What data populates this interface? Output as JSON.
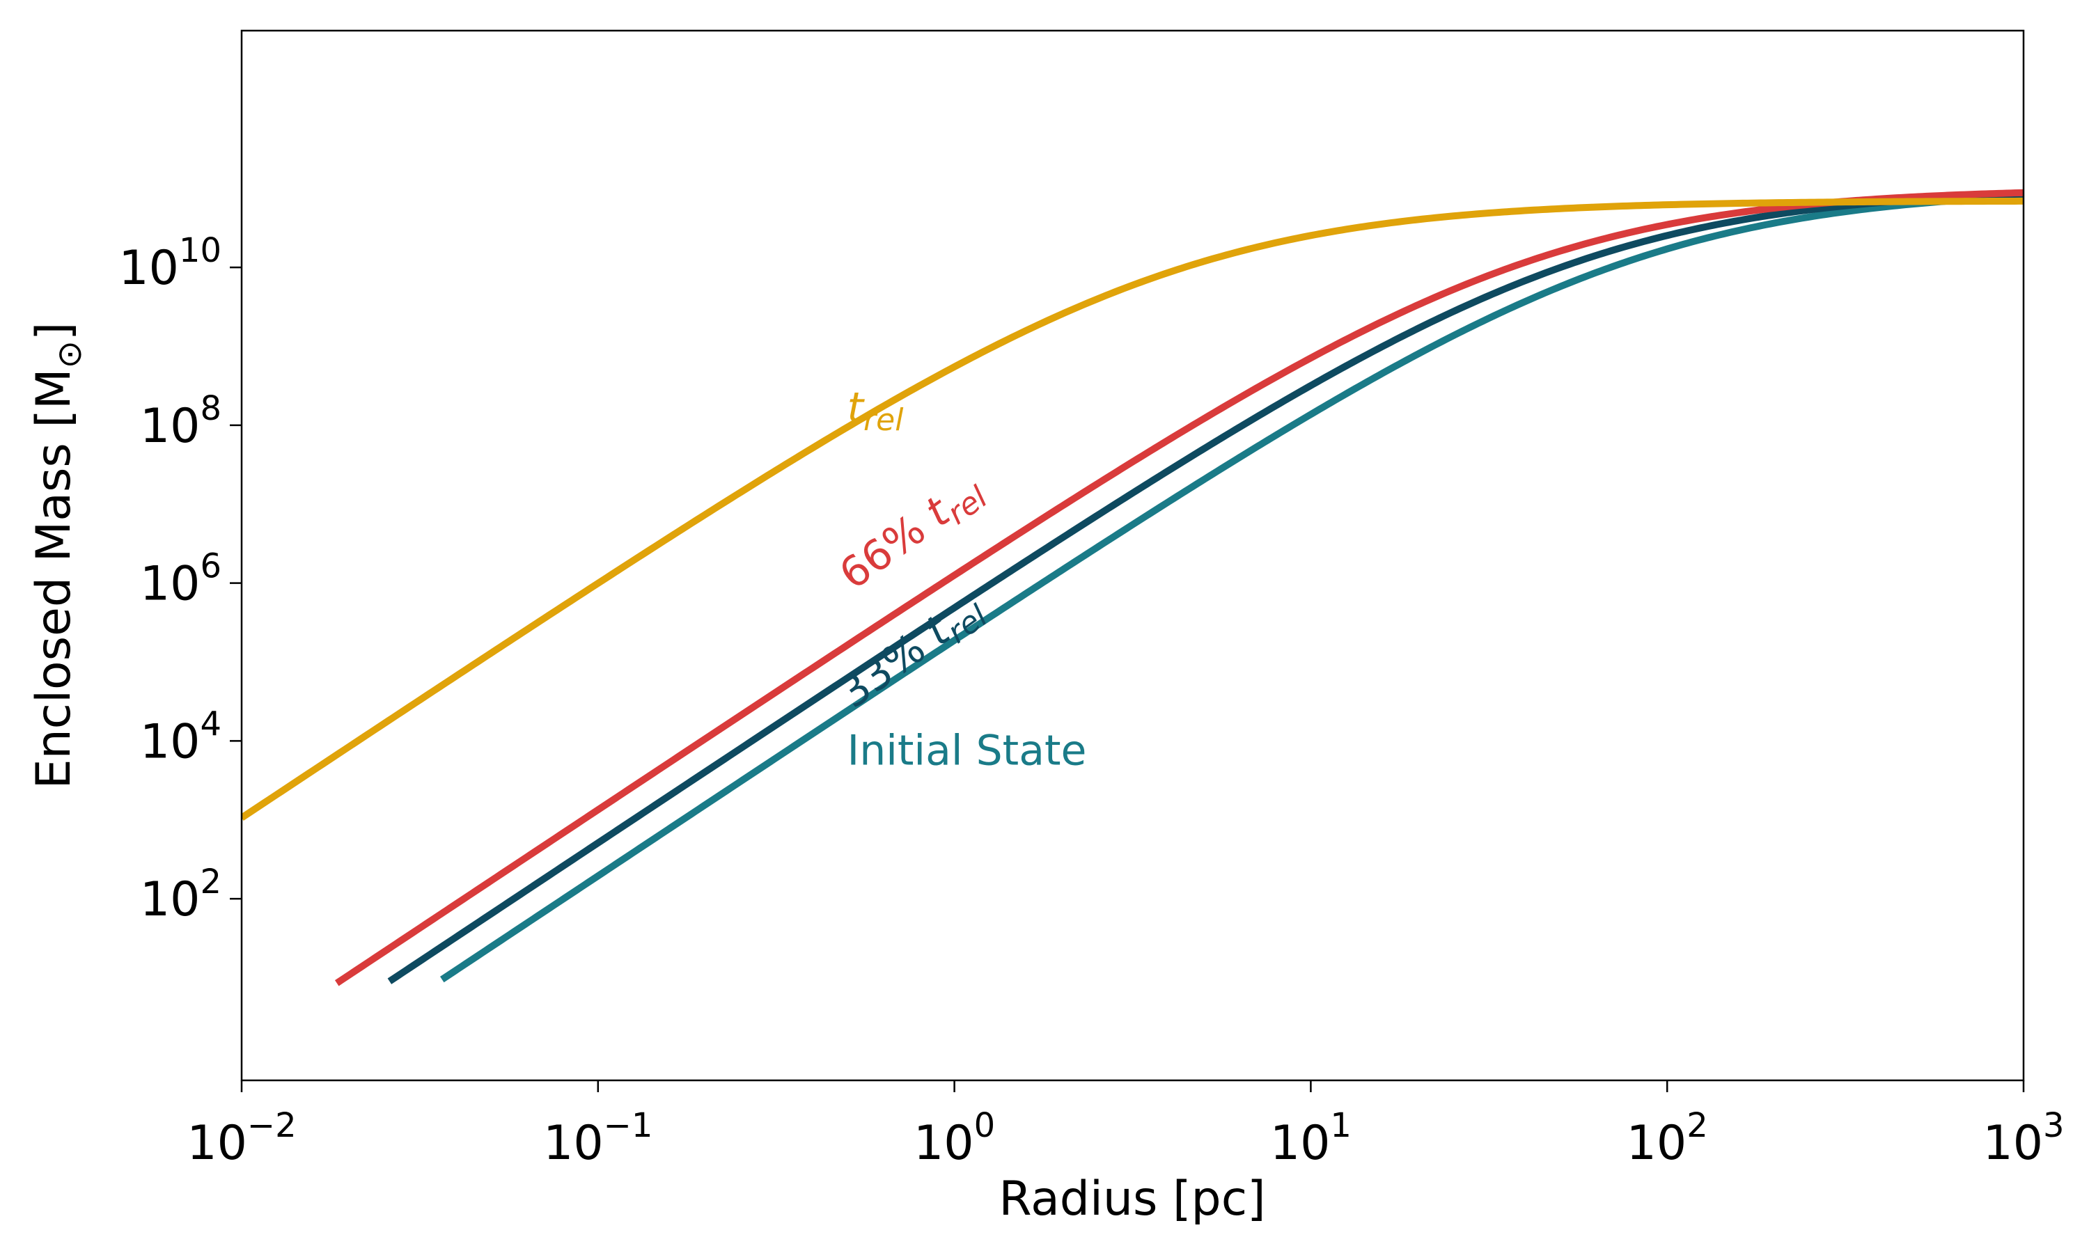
{
  "chart_data": {
    "type": "line",
    "title": "",
    "xlabel": "Radius [pc]",
    "ylabel_main": "Enclosed Mass [M",
    "ylabel_symbol": "⊙",
    "ylabel_end": "]",
    "xscale": "log",
    "yscale": "log",
    "xlim": [
      0.01,
      1000
    ],
    "ylim": [
      0.5,
      10000000000000
    ],
    "grid": false,
    "legend": "inline labels",
    "x_ticks": [
      {
        "value": 0.01,
        "base": "10",
        "exp": "−2"
      },
      {
        "value": 0.1,
        "base": "10",
        "exp": "−1"
      },
      {
        "value": 1,
        "base": "10",
        "exp": "0"
      },
      {
        "value": 10,
        "base": "10",
        "exp": "1"
      },
      {
        "value": 100,
        "base": "10",
        "exp": "2"
      },
      {
        "value": 1000,
        "base": "10",
        "exp": "3"
      }
    ],
    "y_ticks": [
      {
        "value": 100,
        "base": "10",
        "exp": "2"
      },
      {
        "value": 10000,
        "base": "10",
        "exp": "4"
      },
      {
        "value": 1000000,
        "base": "10",
        "exp": "6"
      },
      {
        "value": 100000000,
        "base": "10",
        "exp": "8"
      },
      {
        "value": 10000000000,
        "base": "10",
        "exp": "10"
      }
    ],
    "series": [
      {
        "name": "Initial State",
        "label_prefix": "Initial State",
        "label_sub": "",
        "label_suffix": "",
        "label_anchor": [
          0.5,
          5000
        ],
        "label_rotation": 0,
        "color": "#1a7b88",
        "model": {
          "Mt": 100000000000,
          "a": 80
        },
        "x_range": [
          0.0365,
          1000
        ]
      },
      {
        "name": "33% t_rel",
        "label_prefix": "33% ",
        "label_sub": "rel",
        "label_suffix": "",
        "label_anchor": [
          0.52,
          25000
        ],
        "label_rotation": -36,
        "color": "#0e4a60",
        "model": {
          "Mt": 100000000000,
          "a": 58
        },
        "x_range": [
          0.026,
          1000
        ]
      },
      {
        "name": "66% t_rel",
        "label_prefix": "66% ",
        "label_sub": "rel",
        "label_suffix": "",
        "label_anchor": [
          0.52,
          800000
        ],
        "label_rotation": -36,
        "color": "#d93b3b",
        "model": {
          "Mt": 100000000000,
          "a": 42
        },
        "x_range": [
          0.0185,
          1000
        ]
      },
      {
        "name": "t_rel",
        "label_prefix": "",
        "label_sub": "rel",
        "label_suffix": "",
        "label_anchor": [
          0.5,
          110000000
        ],
        "label_rotation": 0,
        "color": "#e0a30a",
        "model": {
          "Mt": 70000000000,
          "a": 4.03
        },
        "x_range": [
          0.01,
          1000
        ]
      }
    ]
  }
}
